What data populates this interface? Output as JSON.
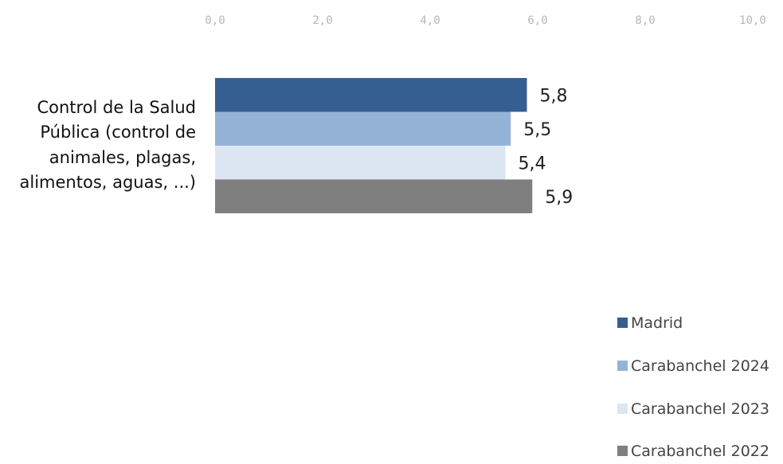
{
  "chart_data": {
    "type": "bar",
    "orientation": "horizontal",
    "categories": [
      "Control de la Salud Pública (control de animales, plagas, alimentos, aguas, ...)"
    ],
    "category_lines": [
      "Control de la Salud",
      "Pública (control de",
      "animales, plagas,",
      "alimentos, aguas, ...)"
    ],
    "series": [
      {
        "name": "Madrid",
        "values": [
          5.8
        ],
        "color": "#365f91",
        "label": "5,8"
      },
      {
        "name": "Carabanchel 2024",
        "values": [
          5.5
        ],
        "color": "#95b3d7",
        "label": "5,5"
      },
      {
        "name": "Carabanchel 2023",
        "values": [
          5.4
        ],
        "color": "#dce6f2",
        "label": "5,4"
      },
      {
        "name": "Carabanchel 2022",
        "values": [
          5.9
        ],
        "color": "#7f7f7f",
        "label": "5,9"
      }
    ],
    "xlim": [
      0,
      10
    ],
    "ticks": [
      0,
      2,
      4,
      6,
      8,
      10
    ],
    "tick_labels": [
      "0,0",
      "2,0",
      "4,0",
      "6,0",
      "8,0",
      "10,0"
    ],
    "axis_position": "top",
    "grid": false,
    "legend_position": "bottom-right",
    "title": "",
    "xlabel": "",
    "ylabel": ""
  }
}
